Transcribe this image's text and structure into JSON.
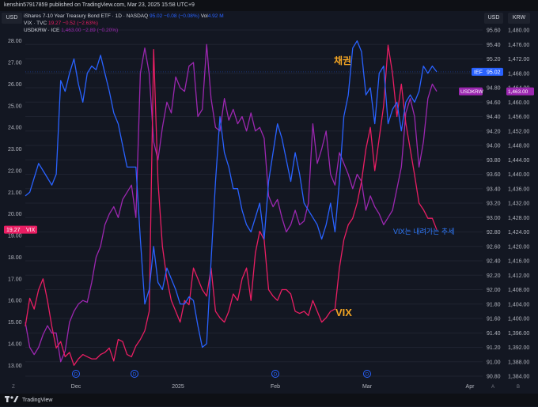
{
  "top_bar": {
    "published_text": "kenshin57917859 published on TradingView.com, Mar 23, 2025 15:58 UTC+9"
  },
  "legend": {
    "row1": {
      "title": "iShares 7-10 Year Treasury Bond ETF · 1D · NASDAQ",
      "price": "95.02",
      "change": "−0.08 (−0.08%)",
      "vol_label": "Vol",
      "vol": "4.92 M"
    },
    "row2": {
      "title": "VIX · TVC",
      "price": "19.27",
      "change": "−0.52 (−2.63%)"
    },
    "row3": {
      "title": "USDKRW · ICE",
      "price": "1,463.00",
      "change": "−2.89 (−0.20%)"
    }
  },
  "axis_headers": {
    "left": "USD",
    "mid": "USD",
    "right": "KRW"
  },
  "badges": {
    "vix_left_value": "19.27",
    "vix_left_label": "VIX",
    "ief_label": "IEF",
    "ief_value": "95.02",
    "usdkrw_label": "USDKRW",
    "usdkrw_value": "1,463.00"
  },
  "annotations": {
    "bond": "채권",
    "vix": "VIX",
    "vix_trend": "VIX는 내려가는 추세"
  },
  "footer": {
    "logo": "TradingView",
    "z_label": "Z",
    "a_label": "A",
    "b_label": "B"
  },
  "colors": {
    "background": "#131722",
    "ief": "#2962ff",
    "vix": "#e91e63",
    "usdkrw": "#9c27b0",
    "annotation_orange": "#f5a623",
    "annotation_blue": "#2f7bff"
  },
  "chart_data": {
    "type": "line",
    "x_tick_labels": [
      "Dec",
      "2025",
      "Feb",
      "Mar",
      "Apr"
    ],
    "dividend_marker": "D",
    "left_axis": {
      "ticks": [
        "28.00",
        "27.00",
        "26.00",
        "25.00",
        "24.00",
        "23.00",
        "22.00",
        "21.00",
        "20.00",
        "19.00",
        "18.00",
        "17.00",
        "16.00",
        "15.00",
        "14.00",
        "13.00"
      ],
      "range": [
        12.5,
        28.5
      ]
    },
    "mid_axis": {
      "ticks": [
        "95.60",
        "95.40",
        "95.20",
        "95.00",
        "94.80",
        "94.60",
        "94.40",
        "94.20",
        "94.00",
        "93.80",
        "93.60",
        "93.40",
        "93.20",
        "93.00",
        "92.80",
        "92.60",
        "92.40",
        "92.20",
        "92.00",
        "91.80",
        "91.60",
        "91.40",
        "91.20",
        "91.00",
        "90.80"
      ],
      "range": [
        90.8,
        95.6
      ]
    },
    "right_axis": {
      "ticks": [
        "1,480.00",
        "1,476.00",
        "1,472.00",
        "1,468.00",
        "1,464.00",
        "1,460.00",
        "1,456.00",
        "1,452.00",
        "1,448.00",
        "1,444.00",
        "1,440.00",
        "1,436.00",
        "1,432.00",
        "1,428.00",
        "1,424.00",
        "1,420.00",
        "1,416.00",
        "1,412.00",
        "1,408.00",
        "1,404.00",
        "1,400.00",
        "1,396.00",
        "1,392.00",
        "1,388.00",
        "1,384.00"
      ],
      "range": [
        1384,
        1480
      ]
    },
    "series": [
      {
        "name": "IEF",
        "axis": "mid",
        "values": [
          93.3,
          93.35,
          93.55,
          93.75,
          93.65,
          93.55,
          93.45,
          93.6,
          94.9,
          94.75,
          95.0,
          95.2,
          94.85,
          94.6,
          95.0,
          95.1,
          95.05,
          95.25,
          95.0,
          94.75,
          94.45,
          94.3,
          94.0,
          93.7,
          93.7,
          93.7,
          92.7,
          91.8,
          92.0,
          92.6,
          92.1,
          92.0,
          92.3,
          92.15,
          92.0,
          91.8,
          91.8,
          91.9,
          91.85,
          91.5,
          91.2,
          91.25,
          92.4,
          93.5,
          94.4,
          93.9,
          93.7,
          93.4,
          93.4,
          93.1,
          92.9,
          92.8,
          93.0,
          93.2,
          92.7,
          93.5,
          93.9,
          94.3,
          94.1,
          93.8,
          93.5,
          93.9,
          93.6,
          93.2,
          93.1,
          93.0,
          92.9,
          92.7,
          92.9,
          93.2,
          92.8,
          93.5,
          94.4,
          94.7,
          95.35,
          95.45,
          95.3,
          94.7,
          94.8,
          94.3,
          95.0,
          95.1,
          94.3,
          94.5,
          94.6,
          94.2,
          94.6,
          94.7,
          94.6,
          94.75,
          95.1,
          95.0,
          95.1,
          95.02
        ]
      },
      {
        "name": "VIX",
        "axis": "left",
        "values": [
          14.8,
          16.1,
          15.6,
          16.5,
          17.0,
          16.0,
          14.8,
          13.8,
          14.1,
          13.4,
          13.6,
          13.0,
          13.3,
          13.5,
          13.4,
          13.3,
          13.3,
          13.5,
          13.6,
          13.8,
          13.2,
          14.2,
          14.1,
          13.5,
          13.4,
          13.9,
          14.2,
          14.6,
          15.5,
          27.6,
          21.5,
          18.5,
          17.0,
          16.0,
          15.5,
          15.0,
          16.0,
          15.8,
          17.5,
          17.0,
          16.5,
          16.2,
          17.5,
          15.5,
          15.2,
          15.0,
          15.5,
          16.3,
          16.0,
          17.0,
          17.5,
          16.0,
          18.2,
          19.2,
          18.8,
          16.5,
          16.2,
          16.0,
          16.5,
          16.5,
          16.3,
          15.5,
          15.4,
          15.5,
          15.3,
          16.0,
          15.5,
          15.0,
          15.2,
          15.5,
          15.6,
          17.5,
          18.8,
          19.5,
          19.8,
          20.5,
          21.5,
          23.0,
          24.0,
          22.0,
          23.5,
          25.0,
          27.8,
          26.5,
          24.5,
          26.0,
          24.2,
          23.0,
          21.8,
          20.5,
          20.2,
          19.8,
          19.8,
          19.27
        ]
      },
      {
        "name": "USDKRW",
        "axis": "right",
        "values": [
          1399.0,
          1392.0,
          1390.0,
          1392.0,
          1395.5,
          1398.0,
          1396.0,
          1396.0,
          1388.0,
          1391.0,
          1399.0,
          1402.0,
          1404.0,
          1405.0,
          1404.5,
          1410.0,
          1417.0,
          1420.0,
          1426.0,
          1429.0,
          1431.0,
          1428.0,
          1433.0,
          1435.0,
          1437.0,
          1428.0,
          1468.0,
          1475.0,
          1468.0,
          1449.0,
          1444.0,
          1453.0,
          1460.0,
          1457.0,
          1467.0,
          1464.0,
          1463.0,
          1470.0,
          1471.0,
          1456.0,
          1458.0,
          1476.0,
          1461.0,
          1453.0,
          1452.0,
          1461.0,
          1455.0,
          1458.0,
          1454.0,
          1456.0,
          1452.0,
          1457.0,
          1452.0,
          1453.0,
          1450.0,
          1434.0,
          1431.0,
          1433.0,
          1428.0,
          1424.0,
          1426.0,
          1430.0,
          1426.0,
          1427.0,
          1432.0,
          1454.0,
          1443.0,
          1447.0,
          1452.0,
          1440.0,
          1437.0,
          1446.0,
          1443.0,
          1440.0,
          1436.0,
          1440.0,
          1438.0,
          1430.0,
          1434.0,
          1431.0,
          1429.0,
          1426.0,
          1428.0,
          1430.0,
          1436.0,
          1442.0,
          1457.0,
          1461.0,
          1456.0,
          1442.0,
          1449.0,
          1461.0,
          1465.0,
          1463.0
        ]
      }
    ]
  }
}
